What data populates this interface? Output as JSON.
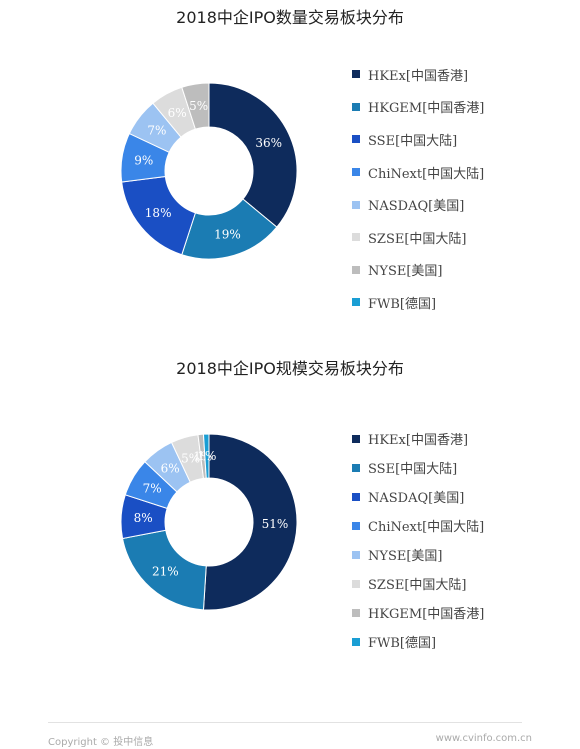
{
  "chart_data": [
    {
      "type": "pie",
      "title": "2018中企IPO数量交易板块分布",
      "categories": [
        "HKEx[中国香港]",
        "HKGEM[中国香港]",
        "SSE[中国大陆]",
        "ChiNext[中国大陆]",
        "NASDAQ[美国]",
        "SZSE[中国大陆]",
        "NYSE[美国]",
        "FWB[德国]"
      ],
      "values": [
        36,
        19,
        18,
        9,
        7,
        6,
        5,
        0
      ],
      "data_labels": [
        "36%",
        "19%",
        "18%",
        "9%",
        "7%",
        "6%",
        "5%",
        ""
      ],
      "unit": "%",
      "colors": [
        "#0e2b5c",
        "#1b7cb3",
        "#1a4fc4",
        "#3a86e8",
        "#9cc3f2",
        "#dcdcdc",
        "#bdbdbd",
        "#1a9ed4"
      ],
      "legend_position": "right"
    },
    {
      "type": "pie",
      "title": "2018中企IPO规模交易板块分布",
      "categories": [
        "HKEx[中国香港]",
        "SSE[中国大陆]",
        "NASDAQ[美国]",
        "ChiNext[中国大陆]",
        "NYSE[美国]",
        "SZSE[中国大陆]",
        "HKGEM[中国香港]",
        "FWB[德国]"
      ],
      "values": [
        51,
        21,
        8,
        7,
        6,
        5,
        1,
        1
      ],
      "data_labels": [
        "51%",
        "21%",
        "8%",
        "7%",
        "6%",
        "5%",
        "1%",
        "1%"
      ],
      "unit": "%",
      "colors": [
        "#0e2b5c",
        "#1b7cb3",
        "#1a4fc4",
        "#3a86e8",
        "#9cc3f2",
        "#dcdcdc",
        "#bdbdbd",
        "#1a9ed4"
      ],
      "legend_position": "right"
    }
  ],
  "footer": {
    "copyright": "Copyright © 投中信息",
    "website": "www.cvinfo.com.cn"
  }
}
